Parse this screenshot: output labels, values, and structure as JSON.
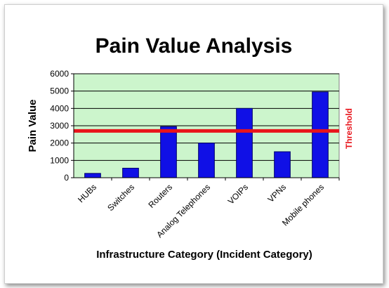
{
  "chart_data": {
    "type": "bar",
    "title": "Pain Value Analysis",
    "xlabel": "Infrastructure Category (Incident Category)",
    "ylabel": "Pain Value",
    "categories": [
      "HUBs",
      "Switches",
      "Routers",
      "Analog Telephones",
      "VOIPs",
      "VPNs",
      "Mobile phones"
    ],
    "values": [
      250,
      550,
      2950,
      2000,
      4000,
      1500,
      4950
    ],
    "ylim": [
      0,
      6000
    ],
    "yticks": [
      "0",
      "1000",
      "2000",
      "3000",
      "4000",
      "5000",
      "6000"
    ],
    "grid": true,
    "threshold": {
      "label": "Threshold",
      "value": 2700,
      "color": "#e8141b"
    },
    "colors": {
      "plot_background": "#ccf5cc",
      "bar_fill": "#1010e6",
      "bar_stroke": "#00006a",
      "gridline": "#000000"
    }
  }
}
